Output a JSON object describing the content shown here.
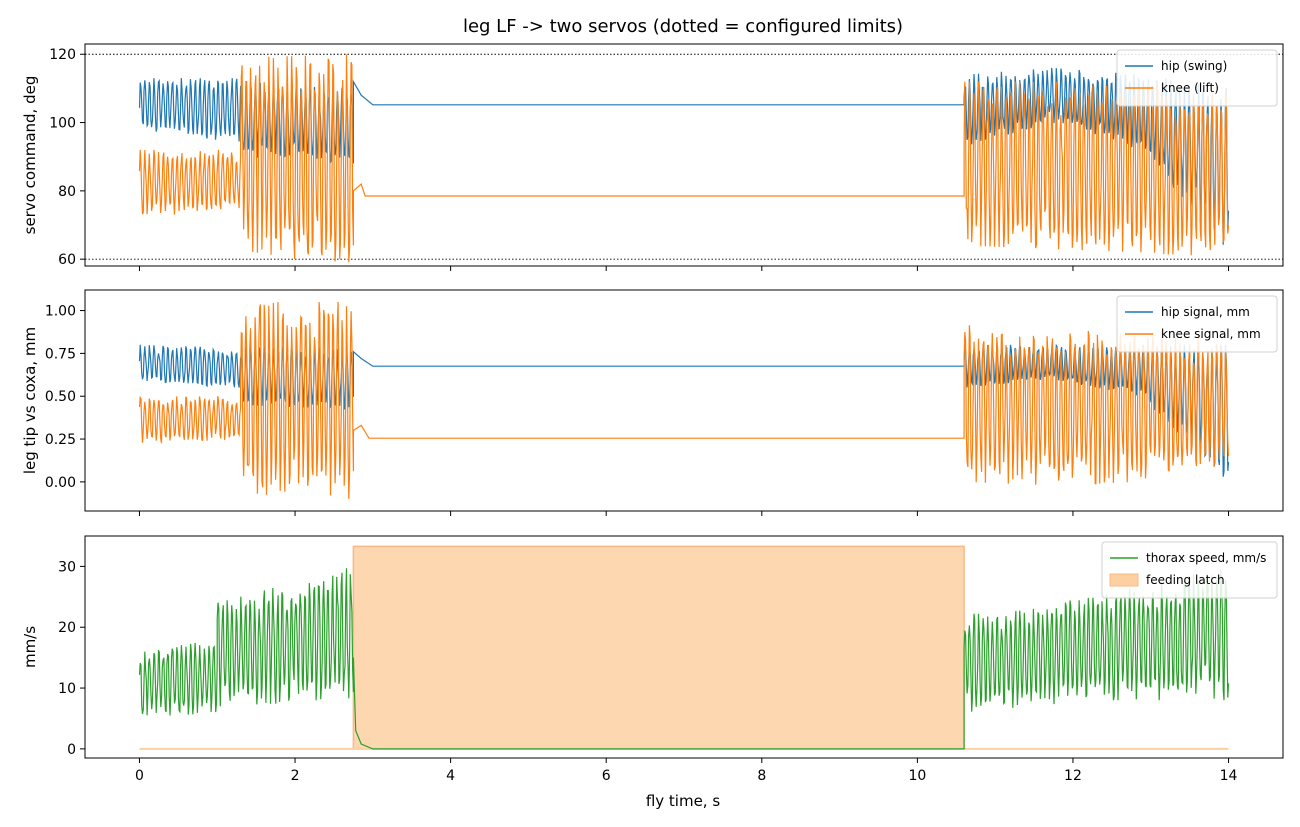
{
  "figure": {
    "title": "leg LF -> two servos   (dotted = configured limits)",
    "xlabel": "fly time, s"
  },
  "chart_data": [
    {
      "type": "line",
      "ylabel": "servo command, deg",
      "xlim": [
        -0.7,
        14.7
      ],
      "ylim": [
        58,
        123
      ],
      "xticks": [
        0,
        2,
        4,
        6,
        8,
        10,
        12,
        14
      ],
      "yticks": [
        60,
        80,
        100,
        120
      ],
      "limit_lines": [
        60,
        120
      ],
      "legend_position": "top-right",
      "series": [
        {
          "name": "hip (swing)",
          "color": "#1f77b4",
          "segments": [
            {
              "x": [
                0.0,
                1.3
              ],
              "osc_freq_hz": 17,
              "bands": [
                [
                  98,
                  113
                ],
                [
                  94,
                  113
                ]
              ]
            },
            {
              "x": [
                1.3,
                2.75
              ],
              "osc_freq_hz": 17,
              "bands": [
                [
                  90,
                  112
                ],
                [
                  88,
                  110
                ]
              ]
            },
            {
              "x": [
                2.75,
                3.0
              ],
              "points": [
                [
                  2.75,
                  112
                ],
                [
                  2.85,
                  108
                ],
                [
                  3.0,
                  105.2
                ]
              ]
            },
            {
              "x": [
                3.0,
                10.6
              ],
              "value": 105.2
            },
            {
              "x": [
                10.6,
                14.0
              ],
              "osc_freq_hz": 17,
              "bands": [
                [
                  93,
                  114
                ],
                [
                  100,
                  116
                ],
                [
                  92,
                  114
                ],
                [
                  60,
                  110
                ]
              ]
            }
          ]
        },
        {
          "name": "knee (lift)",
          "color": "#ff7f0e",
          "segments": [
            {
              "x": [
                0.0,
                1.3
              ],
              "osc_freq_hz": 17,
              "bands": [
                [
                  72,
                  92
                ],
                [
                  75,
                  92
                ]
              ]
            },
            {
              "x": [
                1.3,
                2.75
              ],
              "osc_freq_hz": 17,
              "bands": [
                [
                  61,
                  119
                ],
                [
                  59,
                  120
                ]
              ]
            },
            {
              "x": [
                2.75,
                2.9
              ],
              "points": [
                [
                  2.75,
                  80
                ],
                [
                  2.85,
                  82
                ],
                [
                  2.9,
                  78.5
                ]
              ]
            },
            {
              "x": [
                2.9,
                10.6
              ],
              "value": 78.5
            },
            {
              "x": [
                10.6,
                14.0
              ],
              "osc_freq_hz": 17,
              "bands": [
                [
                  64,
                  112
                ],
                [
                  63,
                  112
                ],
                [
                  62,
                  112
                ],
                [
                  60,
                  110
                ]
              ]
            }
          ]
        }
      ]
    },
    {
      "type": "line",
      "ylabel": "leg tip vs coxa, mm",
      "xlim": [
        -0.7,
        14.7
      ],
      "ylim": [
        -0.17,
        1.12
      ],
      "xticks": [
        0,
        2,
        4,
        6,
        8,
        10,
        12,
        14
      ],
      "yticks": [
        0.0,
        0.25,
        0.5,
        0.75,
        1.0
      ],
      "ytick_labels": [
        "0.00",
        "0.25",
        "0.50",
        "0.75",
        "1.00"
      ],
      "legend_position": "top-right",
      "series": [
        {
          "name": "hip signal, mm",
          "color": "#1f77b4",
          "segments": [
            {
              "x": [
                0.0,
                1.3
              ],
              "osc_freq_hz": 17,
              "bands": [
                [
                  0.58,
                  0.8
                ],
                [
                  0.55,
                  0.78
                ]
              ]
            },
            {
              "x": [
                1.3,
                2.75
              ],
              "osc_freq_hz": 17,
              "bands": [
                [
                  0.45,
                  0.8
                ],
                [
                  0.42,
                  0.78
                ]
              ]
            },
            {
              "x": [
                2.75,
                3.0
              ],
              "points": [
                [
                  2.75,
                  0.76
                ],
                [
                  2.85,
                  0.72
                ],
                [
                  3.0,
                  0.675
                ]
              ]
            },
            {
              "x": [
                3.0,
                10.6
              ],
              "value": 0.675
            },
            {
              "x": [
                10.6,
                14.0
              ],
              "osc_freq_hz": 17,
              "bands": [
                [
                  0.55,
                  0.8
                ],
                [
                  0.6,
                  0.8
                ],
                [
                  0.5,
                  0.8
                ],
                [
                  0.0,
                  0.8
                ]
              ]
            }
          ]
        },
        {
          "name": "knee signal, mm",
          "color": "#ff7f0e",
          "segments": [
            {
              "x": [
                0.0,
                1.3
              ],
              "osc_freq_hz": 17,
              "bands": [
                [
                  0.22,
                  0.5
                ],
                [
                  0.25,
                  0.5
                ]
              ]
            },
            {
              "x": [
                1.3,
                2.75
              ],
              "osc_freq_hz": 17,
              "bands": [
                [
                  -0.08,
                  1.05
                ],
                [
                  -0.1,
                  1.05
                ]
              ]
            },
            {
              "x": [
                2.75,
                2.95
              ],
              "points": [
                [
                  2.75,
                  0.3
                ],
                [
                  2.85,
                  0.33
                ],
                [
                  2.95,
                  0.255
                ]
              ]
            },
            {
              "x": [
                2.95,
                10.6
              ],
              "value": 0.255
            },
            {
              "x": [
                10.6,
                14.0
              ],
              "osc_freq_hz": 17,
              "bands": [
                [
                  0.0,
                  0.95
                ],
                [
                  -0.02,
                  0.9
                ],
                [
                  0.0,
                  0.9
                ],
                [
                  0.05,
                  0.85
                ]
              ]
            }
          ]
        }
      ]
    },
    {
      "type": "area",
      "ylabel": "mm/s",
      "xlim": [
        -0.7,
        14.7
      ],
      "ylim": [
        -1.5,
        35
      ],
      "xticks": [
        0,
        2,
        4,
        6,
        8,
        10,
        12,
        14
      ],
      "yticks": [
        0,
        10,
        20,
        30
      ],
      "legend_position": "top-right",
      "series": [
        {
          "name": "thorax speed, mm/s",
          "color": "#2ca02c",
          "segments": [
            {
              "x": [
                0.0,
                1.0
              ],
              "osc_freq_hz": 17,
              "bands": [
                [
                  5,
                  16
                ],
                [
                  6,
                  18
                ]
              ]
            },
            {
              "x": [
                1.0,
                2.75
              ],
              "osc_freq_hz": 17,
              "bands": [
                [
                  7,
                  24
                ],
                [
                  8,
                  30
                ]
              ]
            },
            {
              "x": [
                2.75,
                3.0
              ],
              "points": [
                [
                  2.75,
                  15
                ],
                [
                  2.78,
                  3
                ],
                [
                  2.85,
                  0.8
                ],
                [
                  3.0,
                  0
                ]
              ]
            },
            {
              "x": [
                3.0,
                10.6
              ],
              "value": 0
            },
            {
              "x": [
                10.6,
                14.0
              ],
              "osc_freq_hz": 17,
              "bands": [
                [
                  6,
                  22
                ],
                [
                  8,
                  25
                ],
                [
                  8,
                  30
                ]
              ]
            }
          ]
        },
        {
          "name": "feeding latch",
          "color": "#fdd0a2",
          "kind": "fill",
          "x": [
            2.75,
            10.6
          ],
          "y": [
            0,
            33.3
          ]
        }
      ]
    }
  ]
}
